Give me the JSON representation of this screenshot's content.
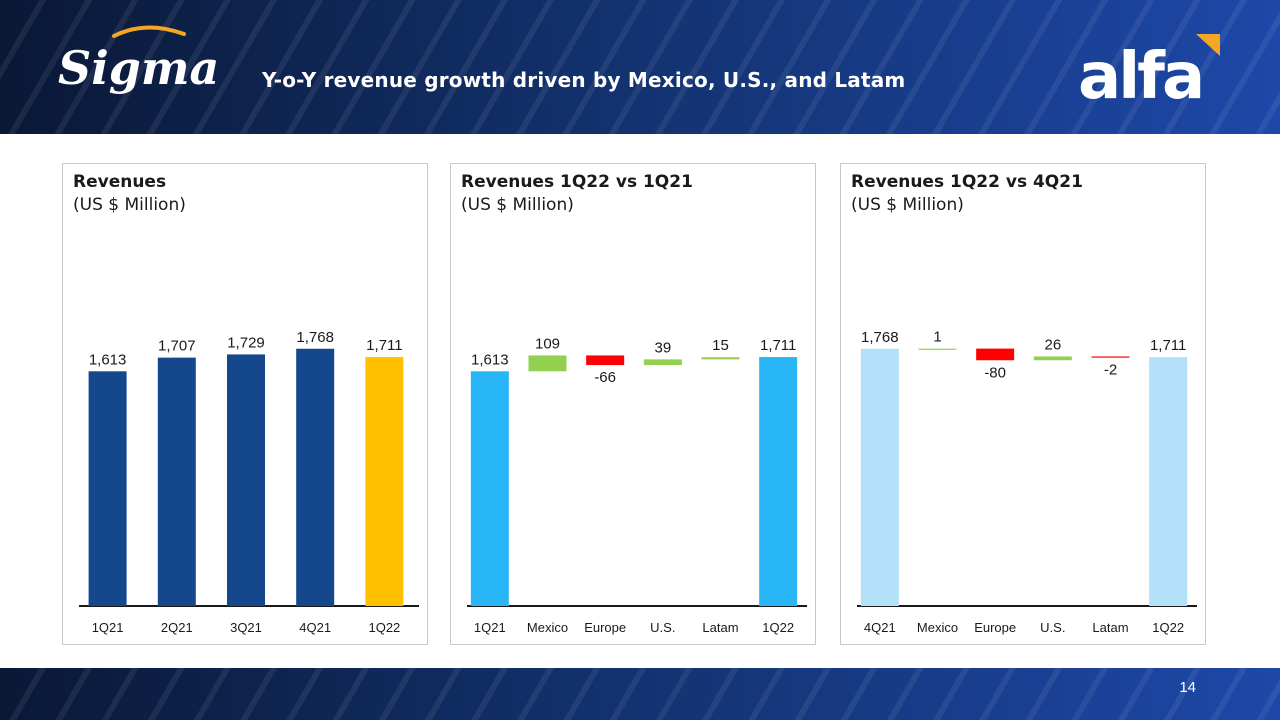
{
  "header": {
    "title": "Y-o-Y revenue growth driven by Mexico, U.S., and Latam",
    "left_logo": "Sigma",
    "right_logo": "alfa"
  },
  "footer": {
    "page_number": "14"
  },
  "colors": {
    "navy_bar": "#15478c",
    "highlight_bar": "#ffc000",
    "blue_bar": "#29b6f6",
    "light_blue_bar": "#b3e1fa",
    "increase": "#92d050",
    "decrease": "#ff0000"
  },
  "chart_data": [
    {
      "type": "bar",
      "title": "Revenues",
      "subtitle": "(US $ Million)",
      "categories": [
        "1Q21",
        "2Q21",
        "3Q21",
        "4Q21",
        "1Q22"
      ],
      "values": [
        1613,
        1707,
        1729,
        1768,
        1711
      ],
      "labels": [
        "1,613",
        "1,707",
        "1,729",
        "1,768",
        "1,711"
      ],
      "highlight_index": 4,
      "ylim": [
        0,
        2100
      ],
      "grid": false,
      "legend": "none"
    },
    {
      "type": "bar",
      "subtype": "waterfall",
      "title": "Revenues 1Q22 vs 1Q21",
      "subtitle": "(US $ Million)",
      "categories": [
        "1Q21",
        "Mexico",
        "Europe",
        "U.S.",
        "Latam",
        "1Q22"
      ],
      "values": [
        1613,
        109,
        -66,
        39,
        15,
        1711
      ],
      "labels": [
        "1,613",
        "109",
        "-66",
        "39",
        "15",
        "1,711"
      ],
      "totals": [
        0,
        5
      ],
      "ylim": [
        0,
        2100
      ],
      "grid": false,
      "legend": "none"
    },
    {
      "type": "bar",
      "subtype": "waterfall",
      "title": "Revenues 1Q22 vs 4Q21",
      "subtitle": "(US $ Million)",
      "categories": [
        "4Q21",
        "Mexico",
        "Europe",
        "U.S.",
        "Latam",
        "1Q22"
      ],
      "values": [
        1768,
        1,
        -80,
        26,
        -2,
        1711
      ],
      "labels": [
        "1,768",
        "1",
        "-80",
        "26",
        "-2",
        "1,711"
      ],
      "totals": [
        0,
        5
      ],
      "ylim": [
        0,
        2100
      ],
      "grid": false,
      "legend": "none"
    }
  ]
}
